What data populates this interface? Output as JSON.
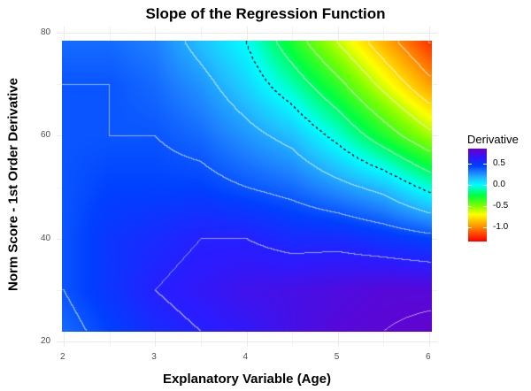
{
  "chart_data": {
    "type": "heatmap",
    "title": "Slope of the Regression Function",
    "xlabel": "Explanatory Variable (Age)",
    "ylabel": "Norm Score -  1st Order Derivative",
    "xlim": [
      2,
      6
    ],
    "ylim": [
      20,
      80
    ],
    "x_ticks": [
      "2",
      "3",
      "4",
      "5",
      "6"
    ],
    "y_ticks": [
      "20",
      "40",
      "60",
      "80"
    ],
    "legend": {
      "title": "Derivative",
      "ticks": [
        "0.5",
        "0.0",
        "-0.5",
        "-1.0"
      ],
      "range": [
        -1.33,
        0.85
      ],
      "position": "right"
    },
    "grid_x": [
      2,
      2.5,
      3,
      3.5,
      4,
      4.5,
      5,
      5.5,
      6
    ],
    "grid_y": [
      78,
      70,
      60,
      50,
      40,
      30,
      22
    ],
    "values": [
      [
        0.35,
        0.35,
        0.3,
        0.15,
        0.0,
        -0.3,
        -0.6,
        -0.9,
        -1.2
      ],
      [
        0.4,
        0.4,
        0.35,
        0.25,
        0.1,
        -0.1,
        -0.35,
        -0.65,
        -0.95
      ],
      [
        0.4,
        0.4,
        0.4,
        0.35,
        0.25,
        0.15,
        -0.05,
        -0.3,
        -0.55
      ],
      [
        0.4,
        0.45,
        0.45,
        0.45,
        0.4,
        0.35,
        0.25,
        0.15,
        -0.05
      ],
      [
        0.4,
        0.5,
        0.55,
        0.6,
        0.6,
        0.55,
        0.55,
        0.5,
        0.45
      ],
      [
        0.4,
        0.5,
        0.6,
        0.65,
        0.7,
        0.72,
        0.75,
        0.78,
        0.78
      ],
      [
        0.35,
        0.45,
        0.55,
        0.6,
        0.65,
        0.72,
        0.78,
        0.8,
        0.82
      ]
    ],
    "contour_levels_step": 0.2,
    "zero_line": "dashed",
    "colors": {
      "scale": [
        "#ff0000",
        "#ffa000",
        "#ffff00",
        "#80ff00",
        "#00ff40",
        "#00ffff",
        "#20c0ff",
        "#1e80ff",
        "#0040ff",
        "#2a1cff",
        "#6a00c8"
      ]
    }
  }
}
